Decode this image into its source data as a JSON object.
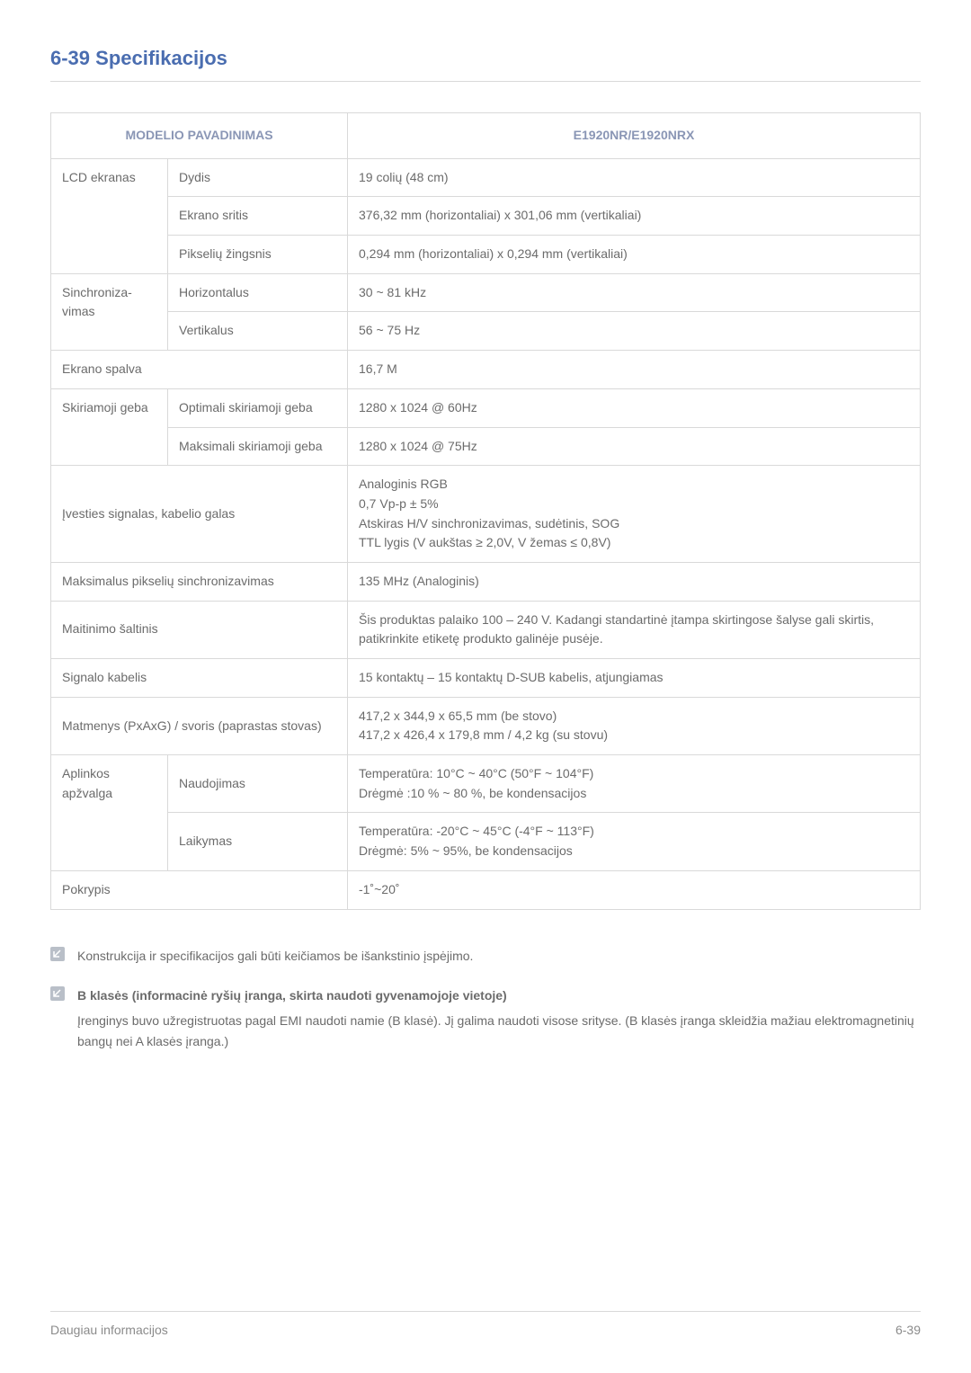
{
  "heading": "6-39  Specifikacijos",
  "table": {
    "header_left": "MODELIO PAVADINIMAS",
    "header_right": "E1920NR/E1920NRX",
    "rows": [
      {
        "g": "LCD ekranas",
        "s": "Dydis",
        "v": "19 colių (48 cm)",
        "gspan": 3
      },
      {
        "s": "Ekrano sritis",
        "v": "376,32 mm (horizontaliai) x 301,06 mm (vertikaliai)"
      },
      {
        "s": "Pikselių žingsnis",
        "v": "0,294 mm (horizontaliai) x 0,294 mm (vertikaliai)"
      },
      {
        "g": "Sinchroniza-\nvimas",
        "s": "Horizontalus",
        "v": "30 ~ 81 kHz",
        "gspan": 2
      },
      {
        "s": "Vertikalus",
        "v": "56 ~ 75 Hz"
      },
      {
        "g": "Ekrano spalva",
        "merge": true,
        "v": "16,7 M"
      },
      {
        "g": "Skiriamoji geba",
        "s": "Optimali skiriamoji geba",
        "v": "1280 x 1024 @ 60Hz",
        "gspan": 2
      },
      {
        "s": "Maksimali skiriamoji geba",
        "v": "1280 x 1024 @ 75Hz"
      },
      {
        "g": "Įvesties signalas, kabelio galas",
        "merge": true,
        "v_lines": [
          "Analoginis RGB",
          "0,7 Vp-p ± 5%",
          "Atskiras H/V sinchronizavimas, sudėtinis, SOG",
          "TTL lygis (V aukštas ≥ 2,0V, V žemas ≤ 0,8V)"
        ]
      },
      {
        "g": "Maksimalus pikselių sinchronizavimas",
        "merge": true,
        "v": "135 MHz (Analoginis)"
      },
      {
        "g": "Maitinimo šaltinis",
        "merge": true,
        "v": "Šis produktas palaiko 100 – 240 V. Kadangi standartinė įtampa skirtingose šalyse gali skirtis, patikrinkite etiketę produkto galinėje pusėje."
      },
      {
        "g": "Signalo kabelis",
        "merge": true,
        "v": "15 kontaktų – 15 kontaktų D-SUB kabelis, atjungiamas"
      },
      {
        "g": "Matmenys (PxAxG) / svoris (paprastas stovas)",
        "merge": true,
        "v_lines": [
          "417,2 x 344,9 x 65,5 mm (be stovo)",
          "417,2 x 426,4 x 179,8 mm / 4,2 kg (su stovu)"
        ]
      },
      {
        "g": "Aplinkos apžvalga",
        "s": "Naudojimas",
        "v_lines": [
          "Temperatūra: 10°C ~ 40°C (50°F ~ 104°F)",
          "Drėgmė :10 % ~ 80 %, be kondensacijos"
        ],
        "gspan": 2
      },
      {
        "s": "Laikymas",
        "v_lines": [
          "Temperatūra: -20°C ~ 45°C (-4°F ~ 113°F)",
          "Drėgmė: 5% ~ 95%, be kondensacijos"
        ]
      },
      {
        "g": "Pokrypis",
        "merge": true,
        "v": "-1˚~20˚"
      }
    ]
  },
  "notes": {
    "n1": "Konstrukcija ir specifikacijos gali būti keičiamos be išankstinio įspėjimo.",
    "n2_title": "B klasės (informacinė ryšių įranga, skirta naudoti gyvenamojoje vietoje)",
    "n2_body": "Įrenginys buvo užregistruotas pagal EMI naudoti namie (B klasė). Jį galima naudoti visose srityse. (B klasės įranga skleidžia mažiau elektromagnetinių bangų nei A klasės įranga.)"
  },
  "footer": {
    "left": "Daugiau informacijos",
    "right": "6-39"
  },
  "colors": {
    "heading": "#4a6db0",
    "header_text": "#8a96b5",
    "body_text": "#6b6b6b",
    "border": "#d9d9d9",
    "icon_bg": "#b9bfc8",
    "icon_stroke": "#ffffff"
  }
}
